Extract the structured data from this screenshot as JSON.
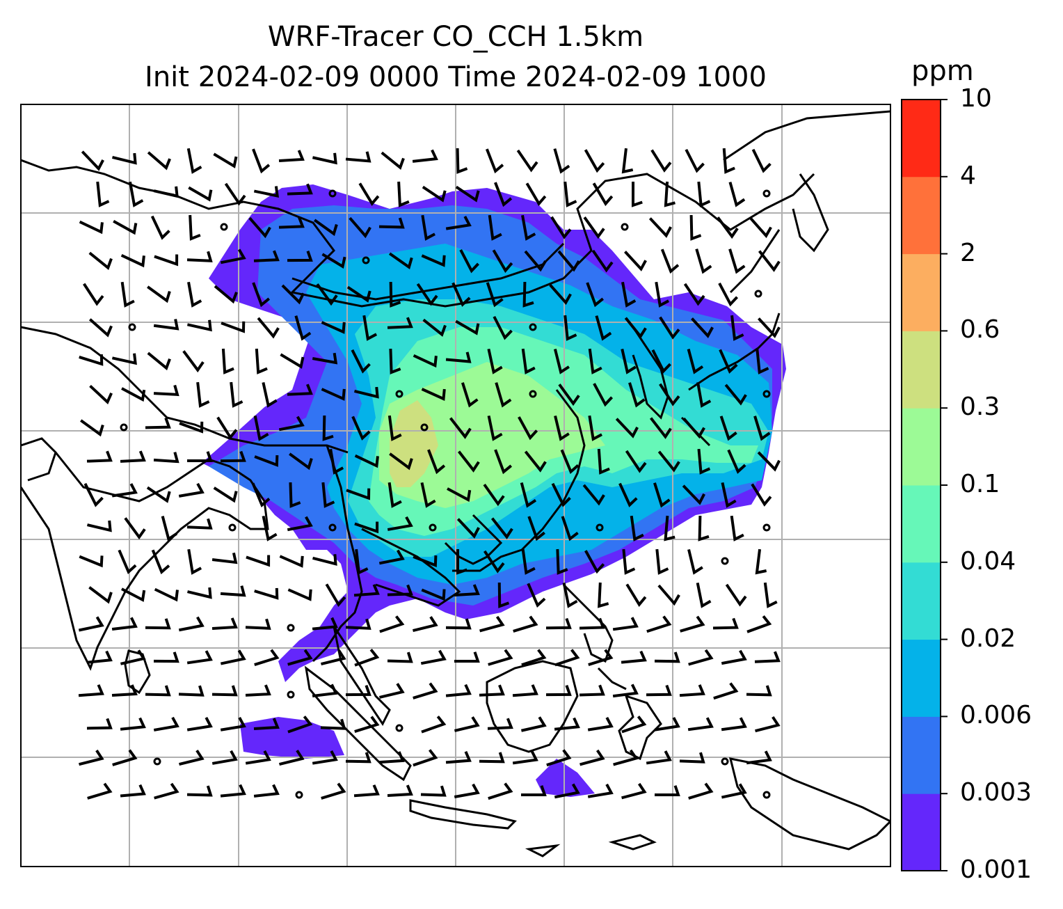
{
  "title_line1": "WRF-Tracer CO_CCH 1.5km",
  "title_line2": "Init 2024-02-09 0000 Time 2024-02-09 1000",
  "colorbar": {
    "unit": "ppm",
    "levels": [
      "0.001",
      "0.003",
      "0.006",
      "0.02",
      "0.04",
      "0.1",
      "0.3",
      "0.6",
      "2",
      "4",
      "10"
    ],
    "colors": [
      "#6427fb",
      "#3274f3",
      "#04b2e9",
      "#33dcd4",
      "#66f7b8",
      "#9cfa96",
      "#cde07f",
      "#fcae60",
      "#ff713a",
      "#ff2a16"
    ]
  },
  "map": {
    "projection": "Mercator",
    "features": [
      "coastlines",
      "country-borders",
      "gridlines",
      "wind-barbs",
      "calm-wind-circles",
      "tracer-concentration-field"
    ]
  }
}
